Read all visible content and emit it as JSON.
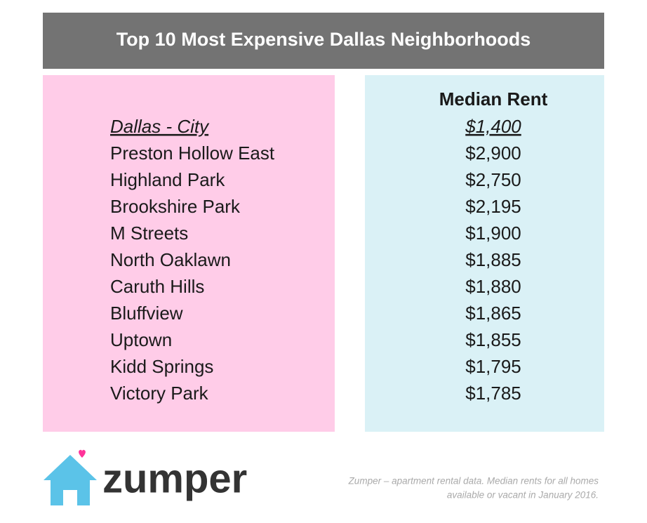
{
  "header": {
    "title": "Top 10 Most Expensive Dallas Neighborhoods"
  },
  "table": {
    "columns": [
      "",
      "Median Rent"
    ],
    "rows": [
      [
        "Dallas - City",
        "$1,400"
      ],
      [
        "Preston Hollow East",
        "$2,900"
      ],
      [
        "Highland Park",
        "$2,750"
      ],
      [
        "Brookshire Park",
        "$2,195"
      ],
      [
        "M Streets",
        "$1,900"
      ],
      [
        "North Oaklawn",
        "$1,885"
      ],
      [
        "Caruth Hills",
        "$1,880"
      ],
      [
        "Bluffview",
        "$1,865"
      ],
      [
        "Uptown",
        "$1,855"
      ],
      [
        "Kidd Springs",
        "$1,795"
      ],
      [
        "Victory Park",
        "$1,785"
      ]
    ]
  },
  "footer": {
    "logo": "zumper",
    "note": [
      "Zumper – apartment rental data. Median rents for all homes",
      "available or vacant in January 2016."
    ]
  }
}
